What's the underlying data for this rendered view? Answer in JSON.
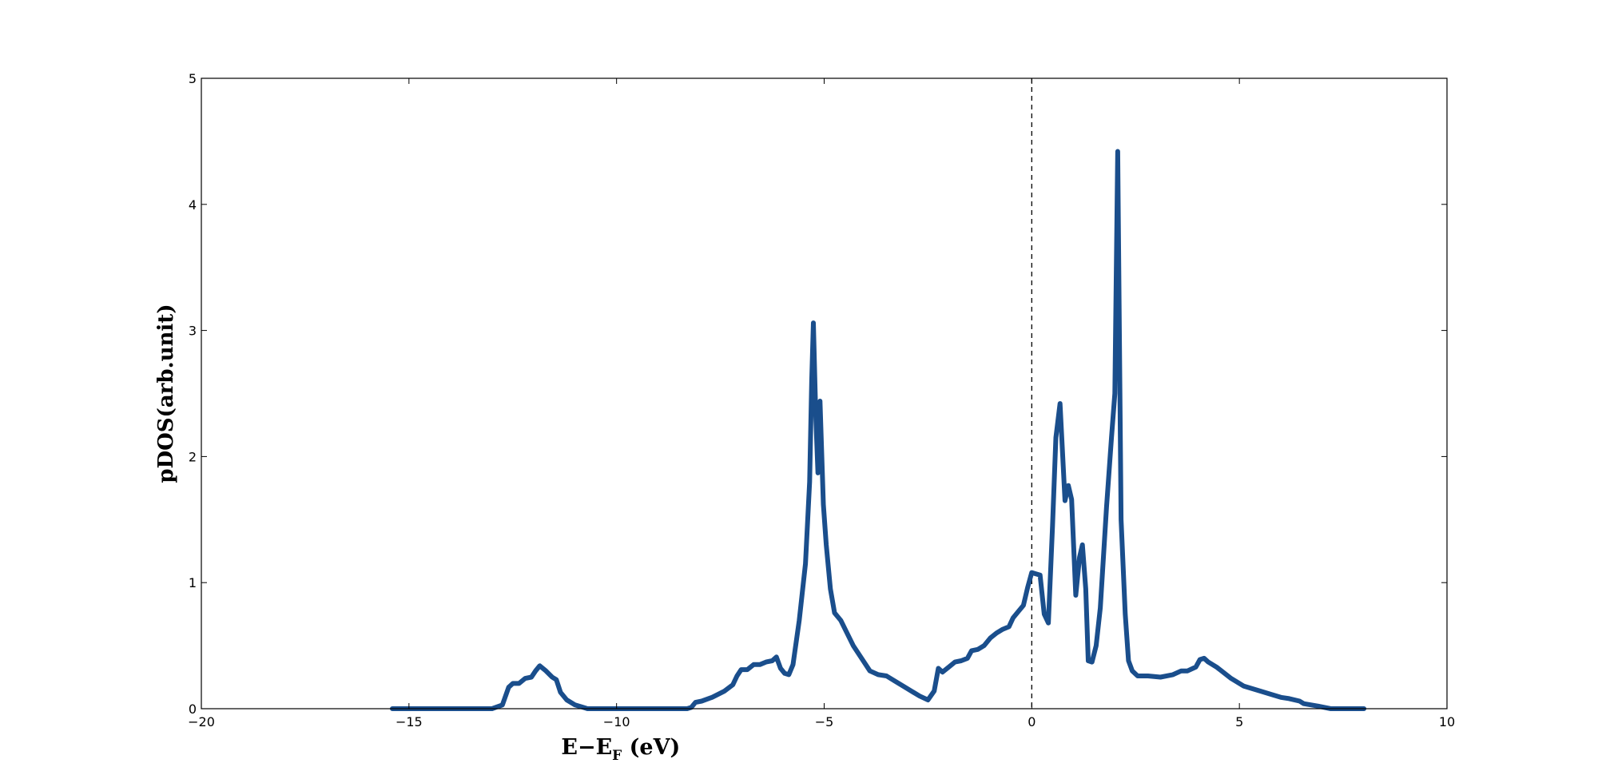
{
  "chart_data": {
    "type": "line",
    "title": "",
    "xlabel": "E−E",
    "xlabel_sub": "F",
    "xlabel_unit": " (eV)",
    "ylabel": "pDOS(arb.unit)",
    "xlim": [
      -20,
      10
    ],
    "ylim": [
      0,
      5
    ],
    "xticks": [
      -20,
      -15,
      -10,
      -5,
      0,
      5,
      10
    ],
    "yticks": [
      0,
      1,
      2,
      3,
      4,
      5
    ],
    "xtick_labels": [
      "−20",
      "−15",
      "−10",
      "−5",
      "0",
      "5",
      "10"
    ],
    "ytick_labels": [
      "0",
      "1",
      "2",
      "3",
      "4",
      "5"
    ],
    "grid": false,
    "legend": "none",
    "reference_line": {
      "x": 0,
      "style": "dashed",
      "color": "#000000"
    },
    "series": [
      {
        "color": "#1a4e8c",
        "points": [
          [
            -15.4,
            0.0
          ],
          [
            -13.0,
            0.0
          ],
          [
            -12.75,
            0.03
          ],
          [
            -12.6,
            0.17
          ],
          [
            -12.5,
            0.2
          ],
          [
            -12.35,
            0.2
          ],
          [
            -12.2,
            0.24
          ],
          [
            -12.05,
            0.25
          ],
          [
            -11.95,
            0.3
          ],
          [
            -11.85,
            0.34
          ],
          [
            -11.7,
            0.3
          ],
          [
            -11.55,
            0.25
          ],
          [
            -11.45,
            0.23
          ],
          [
            -11.35,
            0.13
          ],
          [
            -11.2,
            0.07
          ],
          [
            -11.0,
            0.03
          ],
          [
            -10.8,
            0.01
          ],
          [
            -10.7,
            0.0
          ],
          [
            -8.3,
            0.0
          ],
          [
            -8.2,
            0.01
          ],
          [
            -8.1,
            0.05
          ],
          [
            -7.95,
            0.06
          ],
          [
            -7.7,
            0.09
          ],
          [
            -7.4,
            0.14
          ],
          [
            -7.2,
            0.19
          ],
          [
            -7.1,
            0.26
          ],
          [
            -7.0,
            0.31
          ],
          [
            -6.85,
            0.31
          ],
          [
            -6.7,
            0.35
          ],
          [
            -6.55,
            0.35
          ],
          [
            -6.4,
            0.37
          ],
          [
            -6.25,
            0.38
          ],
          [
            -6.15,
            0.41
          ],
          [
            -6.05,
            0.32
          ],
          [
            -5.95,
            0.28
          ],
          [
            -5.85,
            0.27
          ],
          [
            -5.75,
            0.35
          ],
          [
            -5.6,
            0.7
          ],
          [
            -5.45,
            1.15
          ],
          [
            -5.35,
            1.8
          ],
          [
            -5.3,
            2.6
          ],
          [
            -5.26,
            3.06
          ],
          [
            -5.2,
            2.3
          ],
          [
            -5.15,
            1.87
          ],
          [
            -5.1,
            2.44
          ],
          [
            -5.02,
            1.62
          ],
          [
            -4.95,
            1.3
          ],
          [
            -4.85,
            0.95
          ],
          [
            -4.75,
            0.76
          ],
          [
            -4.6,
            0.7
          ],
          [
            -4.45,
            0.6
          ],
          [
            -4.3,
            0.5
          ],
          [
            -4.1,
            0.4
          ],
          [
            -3.9,
            0.3
          ],
          [
            -3.7,
            0.27
          ],
          [
            -3.5,
            0.26
          ],
          [
            -3.3,
            0.22
          ],
          [
            -3.05,
            0.17
          ],
          [
            -2.85,
            0.13
          ],
          [
            -2.7,
            0.1
          ],
          [
            -2.5,
            0.07
          ],
          [
            -2.35,
            0.14
          ],
          [
            -2.25,
            0.32
          ],
          [
            -2.15,
            0.29
          ],
          [
            -2.0,
            0.33
          ],
          [
            -1.85,
            0.37
          ],
          [
            -1.7,
            0.38
          ],
          [
            -1.55,
            0.4
          ],
          [
            -1.45,
            0.46
          ],
          [
            -1.3,
            0.47
          ],
          [
            -1.15,
            0.5
          ],
          [
            -1.0,
            0.56
          ],
          [
            -0.85,
            0.6
          ],
          [
            -0.7,
            0.63
          ],
          [
            -0.55,
            0.65
          ],
          [
            -0.45,
            0.72
          ],
          [
            -0.3,
            0.78
          ],
          [
            -0.2,
            0.82
          ],
          [
            -0.1,
            0.96
          ],
          [
            0.0,
            1.08
          ],
          [
            0.1,
            1.07
          ],
          [
            0.2,
            1.06
          ],
          [
            0.3,
            0.75
          ],
          [
            0.4,
            0.68
          ],
          [
            0.5,
            1.45
          ],
          [
            0.58,
            2.15
          ],
          [
            0.68,
            2.42
          ],
          [
            0.8,
            1.65
          ],
          [
            0.88,
            1.77
          ],
          [
            0.96,
            1.66
          ],
          [
            1.06,
            0.9
          ],
          [
            1.15,
            1.2
          ],
          [
            1.22,
            1.3
          ],
          [
            1.3,
            0.95
          ],
          [
            1.36,
            0.38
          ],
          [
            1.45,
            0.37
          ],
          [
            1.55,
            0.5
          ],
          [
            1.65,
            0.8
          ],
          [
            1.8,
            1.6
          ],
          [
            1.92,
            2.15
          ],
          [
            2.0,
            2.5
          ],
          [
            2.07,
            4.42
          ],
          [
            2.15,
            1.5
          ],
          [
            2.25,
            0.75
          ],
          [
            2.33,
            0.38
          ],
          [
            2.42,
            0.3
          ],
          [
            2.55,
            0.26
          ],
          [
            2.8,
            0.26
          ],
          [
            3.1,
            0.25
          ],
          [
            3.4,
            0.27
          ],
          [
            3.6,
            0.3
          ],
          [
            3.75,
            0.3
          ],
          [
            3.95,
            0.33
          ],
          [
            4.05,
            0.39
          ],
          [
            4.15,
            0.4
          ],
          [
            4.25,
            0.37
          ],
          [
            4.45,
            0.33
          ],
          [
            4.8,
            0.24
          ],
          [
            5.1,
            0.18
          ],
          [
            5.5,
            0.14
          ],
          [
            5.8,
            0.11
          ],
          [
            6.0,
            0.09
          ],
          [
            6.2,
            0.08
          ],
          [
            6.45,
            0.06
          ],
          [
            6.55,
            0.04
          ],
          [
            6.9,
            0.02
          ],
          [
            7.2,
            0.0
          ],
          [
            8.0,
            0.0
          ]
        ]
      }
    ]
  }
}
